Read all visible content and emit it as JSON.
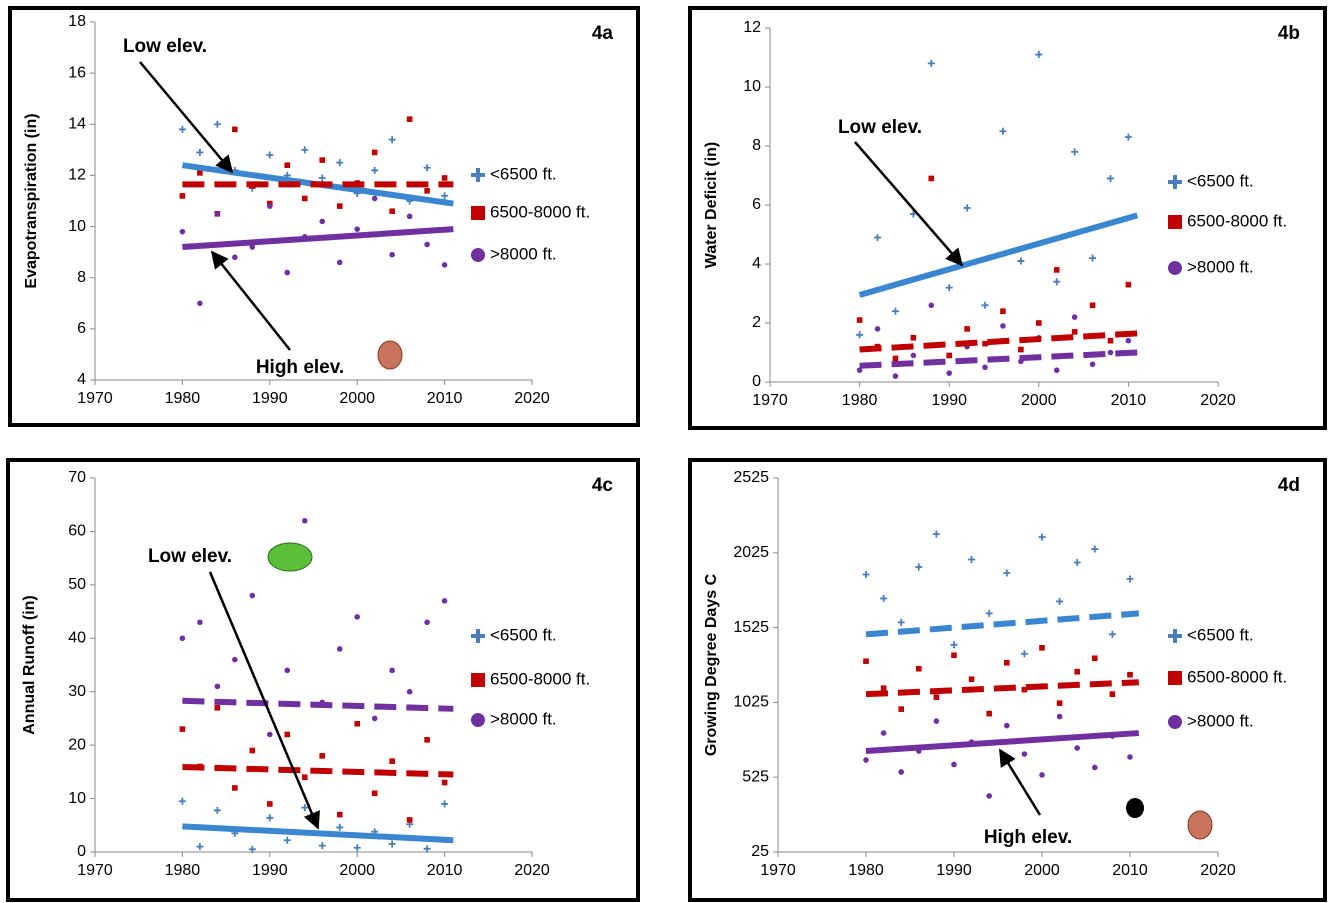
{
  "chart_data": [
    {
      "type": "scatter",
      "title": "4a",
      "y_label": "Evapotranspiration (in)",
      "xlim": [
        1970,
        2020
      ],
      "xticks": [
        1970,
        1980,
        1990,
        2000,
        2010,
        2020
      ],
      "ylim": [
        4,
        18
      ],
      "yticks": [
        4,
        6,
        8,
        10,
        12,
        14,
        16,
        18
      ],
      "series": [
        {
          "name": "<6500 ft.",
          "color": "#4a7ebb",
          "marker": "plus",
          "x": [
            1980,
            1982,
            1984,
            1986,
            1988,
            1990,
            1992,
            1994,
            1996,
            1998,
            2000,
            2002,
            2004,
            2006,
            2008,
            2010
          ],
          "values": [
            13.8,
            12.9,
            14.0,
            12.2,
            11.5,
            12.8,
            12.0,
            13.0,
            11.9,
            12.5,
            11.3,
            12.2,
            13.4,
            11.0,
            12.3,
            11.2
          ]
        },
        {
          "name": "6500-8000 ft.",
          "color": "#c00000",
          "marker": "square",
          "x": [
            1980,
            1982,
            1984,
            1986,
            1988,
            1990,
            1992,
            1994,
            1996,
            1998,
            2000,
            2002,
            2004,
            2006,
            2008,
            2010
          ],
          "values": [
            11.2,
            12.1,
            10.5,
            13.8,
            11.6,
            10.9,
            12.4,
            11.1,
            12.6,
            10.8,
            11.7,
            12.9,
            10.6,
            14.2,
            11.4,
            11.9
          ]
        },
        {
          "name": ">8000 ft.",
          "color": "#7030a0",
          "marker": "circle",
          "x": [
            1980,
            1982,
            1984,
            1986,
            1988,
            1990,
            1992,
            1994,
            1996,
            1998,
            2000,
            2002,
            2004,
            2006,
            2008,
            2010
          ],
          "values": [
            9.8,
            7.0,
            10.5,
            8.8,
            9.2,
            10.8,
            8.2,
            9.6,
            10.2,
            8.6,
            9.9,
            11.1,
            8.9,
            10.4,
            9.3,
            8.5
          ]
        }
      ],
      "trend_lines": [
        {
          "color": "#3a86d0",
          "dashed": false,
          "x": [
            1980,
            2011
          ],
          "values": [
            12.4,
            10.9
          ]
        },
        {
          "color": "#c00000",
          "dashed": true,
          "x": [
            1980,
            2011
          ],
          "values": [
            11.65,
            11.65
          ]
        },
        {
          "color": "#7030a0",
          "dashed": false,
          "x": [
            1980,
            2011
          ],
          "values": [
            9.2,
            9.9
          ]
        }
      ],
      "annotations": [
        {
          "text": "Low elev."
        },
        {
          "text": "High elev."
        }
      ]
    },
    {
      "type": "scatter",
      "title": "4b",
      "y_label": "Water Deficit (in)",
      "xlim": [
        1970,
        2020
      ],
      "xticks": [
        1970,
        1980,
        1990,
        2000,
        2010,
        2020
      ],
      "ylim": [
        0,
        12
      ],
      "yticks": [
        0,
        2,
        4,
        6,
        8,
        10,
        12
      ],
      "series": [
        {
          "name": "<6500 ft.",
          "color": "#4a7ebb",
          "marker": "plus",
          "x": [
            1980,
            1982,
            1984,
            1986,
            1988,
            1990,
            1992,
            1994,
            1996,
            1998,
            2000,
            2002,
            2004,
            2006,
            2008,
            2010
          ],
          "values": [
            1.6,
            4.9,
            2.4,
            5.7,
            10.8,
            3.2,
            5.9,
            2.6,
            8.5,
            4.1,
            11.1,
            3.4,
            7.8,
            4.2,
            6.9,
            8.3
          ]
        },
        {
          "name": "6500-8000 ft.",
          "color": "#c00000",
          "marker": "square",
          "x": [
            1980,
            1982,
            1984,
            1986,
            1988,
            1990,
            1992,
            1994,
            1996,
            1998,
            2000,
            2002,
            2004,
            2006,
            2008,
            2010
          ],
          "values": [
            2.1,
            1.2,
            0.8,
            1.5,
            6.9,
            0.9,
            1.8,
            1.3,
            2.4,
            1.1,
            2.0,
            3.8,
            1.7,
            2.6,
            1.4,
            3.3
          ]
        },
        {
          "name": ">8000 ft.",
          "color": "#7030a0",
          "marker": "circle",
          "x": [
            1980,
            1982,
            1984,
            1986,
            1988,
            1990,
            1992,
            1994,
            1996,
            1998,
            2000,
            2002,
            2004,
            2006,
            2008,
            2010
          ],
          "values": [
            0.4,
            1.8,
            0.2,
            0.9,
            2.6,
            0.3,
            1.2,
            0.5,
            1.9,
            0.7,
            1.5,
            0.4,
            2.2,
            0.6,
            1.0,
            1.4
          ]
        }
      ],
      "trend_lines": [
        {
          "color": "#3a86d0",
          "dashed": false,
          "x": [
            1980,
            2011
          ],
          "values": [
            2.95,
            5.65
          ]
        },
        {
          "color": "#c00000",
          "dashed": true,
          "x": [
            1980,
            2011
          ],
          "values": [
            1.1,
            1.65
          ]
        },
        {
          "color": "#7030a0",
          "dashed": true,
          "x": [
            1980,
            2011
          ],
          "values": [
            0.55,
            1.0
          ]
        }
      ],
      "annotations": [
        {
          "text": "Low elev."
        }
      ]
    },
    {
      "type": "scatter",
      "title": "4c",
      "y_label": "Annual Runoff (in)",
      "xlim": [
        1970,
        2020
      ],
      "xticks": [
        1970,
        1980,
        1990,
        2000,
        2010,
        2020
      ],
      "ylim": [
        0,
        70
      ],
      "yticks": [
        0,
        10,
        20,
        30,
        40,
        50,
        60,
        70
      ],
      "series": [
        {
          "name": "<6500 ft.",
          "color": "#4a7ebb",
          "marker": "plus",
          "x": [
            1980,
            1982,
            1984,
            1986,
            1988,
            1990,
            1992,
            1994,
            1996,
            1998,
            2000,
            2002,
            2004,
            2006,
            2008,
            2010
          ],
          "values": [
            9.5,
            1.0,
            7.8,
            3.5,
            0.5,
            6.4,
            2.2,
            8.3,
            1.2,
            4.6,
            0.8,
            3.8,
            1.5,
            5.2,
            0.6,
            9.0
          ]
        },
        {
          "name": "6500-8000 ft.",
          "color": "#c00000",
          "marker": "square",
          "x": [
            1980,
            1982,
            1984,
            1986,
            1988,
            1990,
            1992,
            1994,
            1996,
            1998,
            2000,
            2002,
            2004,
            2006,
            2008,
            2010
          ],
          "values": [
            23,
            16,
            27,
            12,
            19,
            9,
            22,
            14,
            18,
            7,
            24,
            11,
            17,
            6,
            21,
            13
          ]
        },
        {
          "name": ">8000 ft.",
          "color": "#7030a0",
          "marker": "circle",
          "x": [
            1980,
            1982,
            1984,
            1986,
            1988,
            1990,
            1992,
            1994,
            1996,
            1998,
            2000,
            2002,
            2004,
            2006,
            2008,
            2010
          ],
          "values": [
            40,
            43,
            31,
            36,
            48,
            22,
            34,
            62,
            28,
            38,
            44,
            25,
            34,
            30,
            43,
            47
          ]
        }
      ],
      "trend_lines": [
        {
          "color": "#3a86d0",
          "dashed": false,
          "x": [
            1980,
            2011
          ],
          "values": [
            4.8,
            2.2
          ]
        },
        {
          "color": "#c00000",
          "dashed": true,
          "x": [
            1980,
            2011
          ],
          "values": [
            15.9,
            14.5
          ]
        },
        {
          "color": "#7030a0",
          "dashed": true,
          "x": [
            1980,
            2011
          ],
          "values": [
            28.3,
            26.8
          ]
        }
      ],
      "annotations": [
        {
          "text": "Low elev."
        }
      ]
    },
    {
      "type": "scatter",
      "title": "4d",
      "y_label": "Growing Degree Days C",
      "xlim": [
        1970,
        2020
      ],
      "xticks": [
        1970,
        1980,
        1990,
        2000,
        2010,
        2020
      ],
      "ylim": [
        25,
        2525
      ],
      "yticks": [
        25,
        525,
        1025,
        1525,
        2025,
        2525
      ],
      "series": [
        {
          "name": "<6500 ft.",
          "color": "#4a7ebb",
          "marker": "plus",
          "x": [
            1980,
            1982,
            1984,
            1986,
            1988,
            1990,
            1992,
            1994,
            1996,
            1998,
            2000,
            2002,
            2004,
            2006,
            2008,
            2010
          ],
          "values": [
            1880,
            1720,
            1560,
            1930,
            2150,
            1410,
            1980,
            1620,
            1890,
            1350,
            2130,
            1700,
            1960,
            2050,
            1480,
            1850
          ]
        },
        {
          "name": "6500-8000 ft.",
          "color": "#c00000",
          "marker": "square",
          "x": [
            1980,
            1982,
            1984,
            1986,
            1988,
            1990,
            1992,
            1994,
            1996,
            1998,
            2000,
            2002,
            2004,
            2006,
            2008,
            2010
          ],
          "values": [
            1300,
            1120,
            980,
            1250,
            1060,
            1340,
            1180,
            950,
            1290,
            1110,
            1390,
            1020,
            1230,
            1320,
            1080,
            1210
          ]
        },
        {
          "name": ">8000 ft.",
          "color": "#7030a0",
          "marker": "circle",
          "x": [
            1980,
            1982,
            1984,
            1986,
            1988,
            1990,
            1992,
            1994,
            1996,
            1998,
            2000,
            2002,
            2004,
            2006,
            2008,
            2010
          ],
          "values": [
            640,
            820,
            560,
            700,
            900,
            610,
            760,
            400,
            870,
            680,
            540,
            930,
            720,
            590,
            800,
            660
          ]
        }
      ],
      "trend_lines": [
        {
          "color": "#3a86d0",
          "dashed": true,
          "x": [
            1980,
            2011
          ],
          "values": [
            1480,
            1620
          ]
        },
        {
          "color": "#c00000",
          "dashed": true,
          "x": [
            1980,
            2011
          ],
          "values": [
            1080,
            1160
          ]
        },
        {
          "color": "#7030a0",
          "dashed": false,
          "x": [
            1980,
            2011
          ],
          "values": [
            700,
            820
          ]
        }
      ],
      "annotations": [
        {
          "text": "High elev."
        }
      ]
    }
  ]
}
